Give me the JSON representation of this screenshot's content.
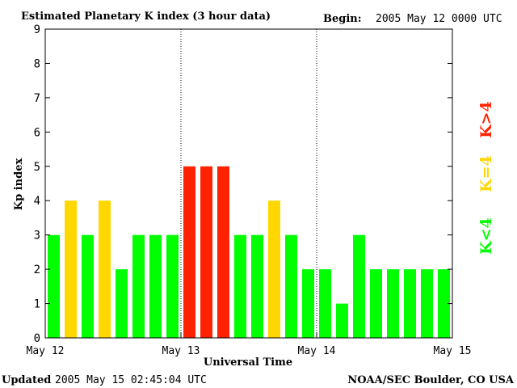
{
  "header": {
    "title": "Estimated Planetary K index (3 hour data)",
    "begin_label": "Begin:",
    "begin_value": "2005 May 12 0000 UTC"
  },
  "footer": {
    "updated_label": "Updated",
    "updated_value": "2005 May 15 02:45:04 UTC",
    "source": "NOAA/SEC Boulder, CO USA"
  },
  "legend": {
    "low": "K<4",
    "equal": "K=4",
    "high": "K>4"
  },
  "colors": {
    "low": "#00ff00",
    "equal": "#ffd700",
    "high": "#ff2200",
    "axis": "#000000"
  },
  "chart_data": {
    "type": "bar",
    "title": "Estimated Planetary K index (3 hour data)",
    "xlabel": "Universal Time",
    "ylabel": "Kp index",
    "ylim": [
      0,
      9
    ],
    "yticks": [
      0,
      1,
      2,
      3,
      4,
      5,
      6,
      7,
      8,
      9
    ],
    "day_labels": [
      "May 12",
      "May 13",
      "May 14",
      "May 15"
    ],
    "bars_per_day": 8,
    "values": [
      3,
      4,
      3,
      4,
      2,
      3,
      3,
      3,
      5,
      5,
      5,
      3,
      3,
      4,
      3,
      2,
      2,
      1,
      3,
      2,
      2,
      2,
      2,
      2
    ],
    "grid": false
  }
}
